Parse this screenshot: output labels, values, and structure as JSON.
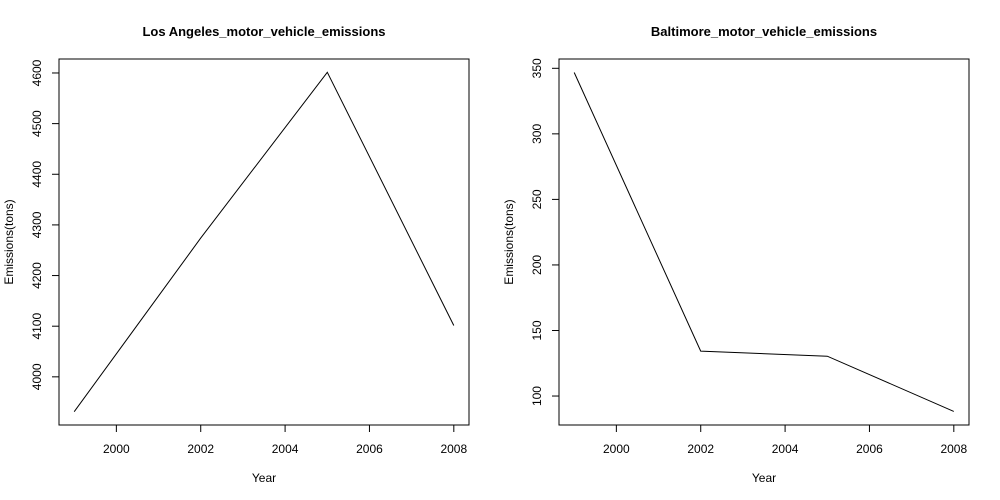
{
  "chart_data": [
    {
      "type": "line",
      "title": "Los Angeles_motor_vehicle_emissions",
      "xlabel": "Year",
      "ylabel": "Emissions(tons)",
      "x": [
        1999,
        2002,
        2005,
        2008
      ],
      "series": [
        {
          "values": [
            3931.1,
            4274.0,
            4601.4,
            4101.3
          ]
        }
      ],
      "xlim": [
        1998.64,
        2008.36
      ],
      "ylim": [
        3904.9,
        4627.6
      ],
      "xticks": [
        2000,
        2002,
        2004,
        2006,
        2008
      ],
      "yticks": [
        4000,
        4100,
        4200,
        4300,
        4400,
        4500,
        4600
      ],
      "xtick_labels": [
        "2000",
        "2002",
        "2004",
        "2006",
        "2008"
      ],
      "ytick_labels": [
        "4000",
        "4100",
        "4200",
        "4300",
        "4400",
        "4500",
        "4600"
      ],
      "grid": false,
      "line_color": "#000000"
    },
    {
      "type": "line",
      "title": "Baltimore_motor_vehicle_emissions",
      "xlabel": "Year",
      "ylabel": "Emissions(tons)",
      "x": [
        1999,
        2002,
        2005,
        2008
      ],
      "series": [
        {
          "values": [
            346.8,
            134.3,
            130.4,
            88.3
          ]
        }
      ],
      "xlim": [
        1998.64,
        2008.36
      ],
      "ylim": [
        77.9,
        357.1
      ],
      "xticks": [
        2000,
        2002,
        2004,
        2006,
        2008
      ],
      "yticks": [
        100,
        150,
        200,
        250,
        300,
        350
      ],
      "xtick_labels": [
        "2000",
        "2002",
        "2004",
        "2006",
        "2008"
      ],
      "ytick_labels": [
        "100",
        "150",
        "200",
        "250",
        "300",
        "350"
      ],
      "grid": false,
      "line_color": "#000000"
    }
  ]
}
